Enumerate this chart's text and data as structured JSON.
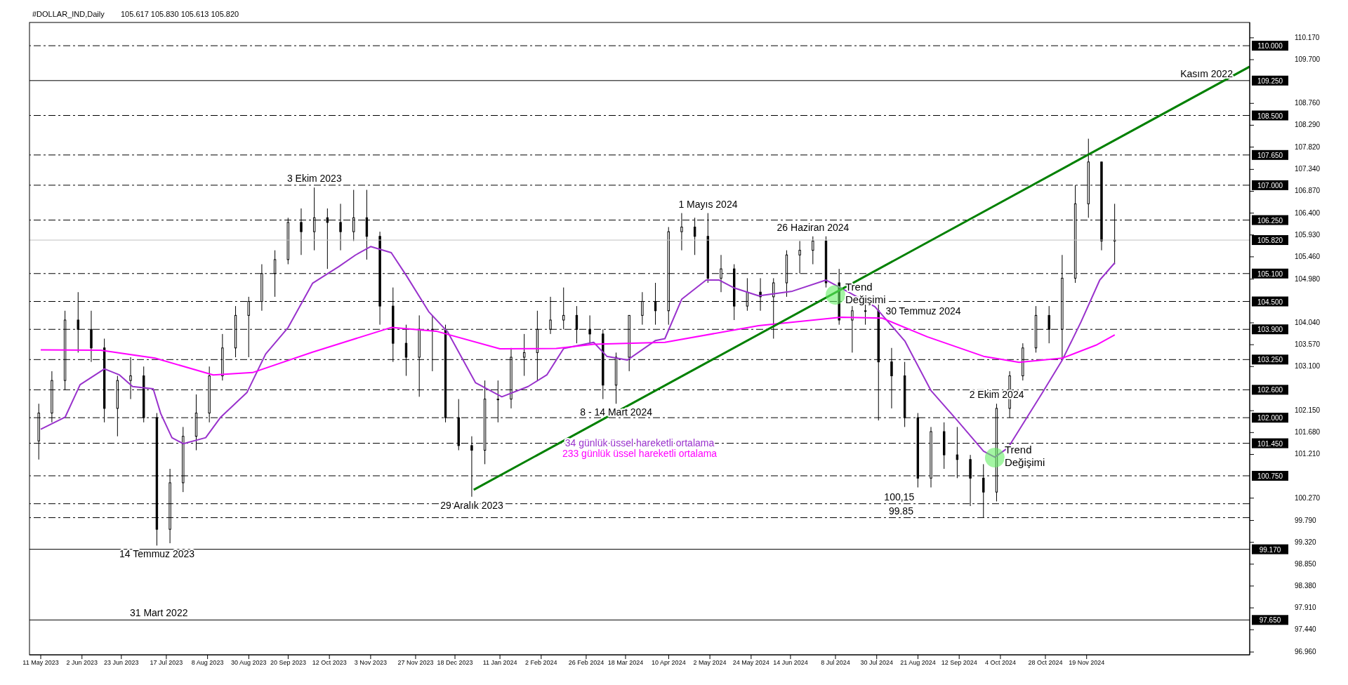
{
  "chart_data": {
    "type": "candlestick",
    "title": "#DOLLAR_IND,Daily",
    "subtitle": "105.617 105.830 105.613 105.820",
    "x": [
      "2023-05-10",
      "2023-05-17",
      "2023-05-24",
      "2023-05-31",
      "2023-06-07",
      "2023-06-14",
      "2023-06-21",
      "2023-06-28",
      "2023-07-05",
      "2023-07-12",
      "2023-07-19",
      "2023-07-26",
      "2023-08-02",
      "2023-08-09",
      "2023-08-16",
      "2023-08-23",
      "2023-08-30",
      "2023-09-06",
      "2023-09-13",
      "2023-09-20",
      "2023-09-27",
      "2023-10-04",
      "2023-10-11",
      "2023-10-18",
      "2023-10-25",
      "2023-11-01",
      "2023-11-08",
      "2023-11-15",
      "2023-11-22",
      "2023-11-29",
      "2023-12-06",
      "2023-12-13",
      "2023-12-20",
      "2023-12-27",
      "2024-01-03",
      "2024-01-10",
      "2024-01-17",
      "2024-01-24",
      "2024-01-31",
      "2024-02-07",
      "2024-02-14",
      "2024-02-21",
      "2024-02-28",
      "2024-03-06",
      "2024-03-13",
      "2024-03-20",
      "2024-03-27",
      "2024-04-03",
      "2024-04-10",
      "2024-04-17",
      "2024-04-24",
      "2024-05-01",
      "2024-05-08",
      "2024-05-15",
      "2024-05-22",
      "2024-05-29",
      "2024-06-05",
      "2024-06-12",
      "2024-06-19",
      "2024-06-26",
      "2024-07-03",
      "2024-07-10",
      "2024-07-17",
      "2024-07-24",
      "2024-07-31",
      "2024-08-07",
      "2024-08-14",
      "2024-08-21",
      "2024-08-28",
      "2024-09-04",
      "2024-09-11",
      "2024-09-18",
      "2024-09-25",
      "2024-10-02",
      "2024-10-09",
      "2024-10-16",
      "2024-10-23",
      "2024-10-30",
      "2024-11-06",
      "2024-11-13",
      "2024-11-20",
      "2024-11-27",
      "2024-12-04"
    ],
    "ohlc": [
      [
        101.5,
        102.3,
        101.1,
        102.1
      ],
      [
        102.1,
        103.0,
        101.9,
        102.8
      ],
      [
        102.8,
        104.3,
        102.6,
        104.1
      ],
      [
        104.1,
        104.7,
        103.4,
        103.9
      ],
      [
        103.9,
        104.3,
        103.2,
        103.5
      ],
      [
        103.5,
        103.7,
        101.9,
        102.2
      ],
      [
        102.2,
        102.9,
        101.6,
        102.8
      ],
      [
        102.8,
        103.3,
        102.4,
        102.9
      ],
      [
        102.9,
        103.1,
        101.9,
        102.0
      ],
      [
        102.0,
        102.1,
        99.25,
        99.6
      ],
      [
        99.6,
        100.9,
        99.3,
        100.6
      ],
      [
        100.6,
        101.8,
        100.4,
        101.6
      ],
      [
        101.6,
        102.5,
        101.3,
        102.1
      ],
      [
        102.1,
        103.1,
        101.9,
        102.9
      ],
      [
        102.9,
        103.8,
        102.8,
        103.5
      ],
      [
        103.5,
        104.4,
        103.3,
        104.2
      ],
      [
        104.2,
        104.6,
        103.3,
        104.5
      ],
      [
        104.5,
        105.3,
        104.3,
        105.1
      ],
      [
        105.1,
        105.6,
        104.6,
        105.4
      ],
      [
        105.4,
        106.3,
        105.3,
        106.2
      ],
      [
        106.2,
        106.5,
        105.5,
        106.0
      ],
      [
        106.0,
        106.95,
        105.6,
        106.3
      ],
      [
        106.3,
        106.5,
        105.2,
        106.2
      ],
      [
        106.2,
        106.6,
        105.6,
        106.0
      ],
      [
        106.0,
        106.9,
        105.8,
        106.3
      ],
      [
        106.3,
        106.9,
        105.4,
        105.9
      ],
      [
        105.9,
        106.0,
        104.0,
        104.4
      ],
      [
        104.4,
        104.8,
        103.2,
        103.6
      ],
      [
        103.6,
        104.0,
        102.9,
        103.3
      ],
      [
        103.3,
        104.2,
        102.45,
        103.9
      ],
      [
        103.9,
        104.2,
        103.0,
        103.9
      ],
      [
        103.9,
        104.0,
        101.9,
        102.0
      ],
      [
        102.0,
        102.4,
        101.3,
        101.4
      ],
      [
        101.4,
        101.6,
        100.3,
        101.3
      ],
      [
        101.3,
        102.8,
        101.0,
        102.4
      ],
      [
        102.4,
        102.8,
        101.9,
        102.4
      ],
      [
        102.4,
        103.5,
        102.2,
        103.3
      ],
      [
        103.3,
        103.8,
        102.9,
        103.4
      ],
      [
        103.4,
        104.3,
        102.8,
        103.9
      ],
      [
        103.9,
        104.6,
        103.8,
        104.1
      ],
      [
        104.1,
        104.8,
        103.9,
        104.2
      ],
      [
        104.2,
        104.4,
        103.6,
        103.9
      ],
      [
        103.9,
        104.2,
        103.6,
        103.8
      ],
      [
        103.8,
        103.9,
        102.4,
        102.7
      ],
      [
        102.7,
        103.4,
        102.3,
        103.3
      ],
      [
        103.3,
        104.2,
        103.0,
        104.2
      ],
      [
        104.2,
        104.7,
        104.0,
        104.5
      ],
      [
        104.5,
        104.9,
        104.0,
        104.3
      ],
      [
        104.3,
        106.1,
        104.0,
        106.0
      ],
      [
        106.0,
        106.4,
        105.6,
        106.1
      ],
      [
        106.1,
        106.3,
        105.5,
        105.9
      ],
      [
        105.9,
        106.4,
        104.9,
        105.0
      ],
      [
        105.0,
        105.5,
        104.7,
        105.2
      ],
      [
        105.2,
        105.3,
        104.1,
        104.4
      ],
      [
        104.4,
        105.0,
        104.3,
        104.7
      ],
      [
        104.7,
        105.0,
        104.3,
        104.6
      ],
      [
        104.6,
        105.0,
        103.7,
        104.9
      ],
      [
        104.9,
        105.6,
        104.6,
        105.5
      ],
      [
        105.5,
        105.8,
        105.1,
        105.6
      ],
      [
        105.6,
        105.9,
        105.3,
        105.8
      ],
      [
        105.8,
        105.9,
        104.8,
        104.9
      ],
      [
        104.9,
        105.2,
        104.0,
        104.1
      ],
      [
        104.1,
        104.4,
        103.4,
        104.3
      ],
      [
        104.3,
        104.6,
        104.0,
        104.3
      ],
      [
        104.3,
        104.5,
        101.94,
        103.2
      ],
      [
        103.2,
        103.5,
        102.2,
        102.9
      ],
      [
        102.9,
        103.2,
        101.8,
        102.0
      ],
      [
        102.0,
        102.1,
        100.5,
        100.7
      ],
      [
        100.7,
        101.8,
        100.5,
        101.7
      ],
      [
        101.7,
        101.9,
        100.9,
        101.2
      ],
      [
        101.2,
        101.8,
        100.7,
        101.1
      ],
      [
        101.1,
        101.2,
        100.1,
        100.7
      ],
      [
        100.7,
        101.0,
        99.85,
        100.4
      ],
      [
        100.4,
        102.3,
        100.2,
        102.2
      ],
      [
        102.2,
        103.0,
        102.0,
        102.9
      ],
      [
        102.9,
        103.6,
        102.8,
        103.5
      ],
      [
        103.5,
        104.4,
        103.4,
        104.2
      ],
      [
        104.2,
        104.4,
        103.6,
        103.9
      ],
      [
        103.9,
        105.5,
        103.25,
        105.0
      ],
      [
        105.0,
        107.0,
        104.9,
        106.6
      ],
      [
        106.6,
        108.0,
        106.3,
        107.5
      ],
      [
        107.5,
        107.5,
        105.6,
        105.8
      ],
      [
        105.8,
        106.6,
        105.3,
        105.82
      ]
    ],
    "series": [
      {
        "type": "line",
        "name": "34 günlük üssel hareketli ortalama",
        "color": "#9932cc",
        "x": [
          "2023-05-11",
          "2023-05-24",
          "2023-06-01",
          "2023-06-14",
          "2023-06-22",
          "2023-06-29",
          "2023-07-10",
          "2023-07-14",
          "2023-07-20",
          "2023-07-26",
          "2023-08-07",
          "2023-08-15",
          "2023-08-29",
          "2023-09-08",
          "2023-09-20",
          "2023-10-03",
          "2023-10-17",
          "2023-10-26",
          "2023-11-03",
          "2023-11-14",
          "2023-11-22",
          "2023-12-04",
          "2023-12-14",
          "2023-12-29",
          "2024-01-12",
          "2024-01-26",
          "2024-02-05",
          "2024-02-14",
          "2024-03-01",
          "2024-03-08",
          "2024-03-19",
          "2024-04-03",
          "2024-04-08",
          "2024-04-17",
          "2024-04-30",
          "2024-05-07",
          "2024-05-15",
          "2024-05-28",
          "2024-06-15",
          "2024-07-03",
          "2024-07-11",
          "2024-07-29",
          "2024-08-14",
          "2024-08-28",
          "2024-09-11",
          "2024-09-25",
          "2024-10-01",
          "2024-10-08",
          "2024-10-26",
          "2024-11-06",
          "2024-11-16",
          "2024-11-26",
          "2024-12-04"
        ],
        "values": [
          101.75,
          102.01,
          102.71,
          103.05,
          102.92,
          102.67,
          102.62,
          102.09,
          101.57,
          101.44,
          101.57,
          102.01,
          102.54,
          103.37,
          103.94,
          104.89,
          105.25,
          105.5,
          105.68,
          105.55,
          105.06,
          104.28,
          103.85,
          102.75,
          102.45,
          102.67,
          102.92,
          103.49,
          103.62,
          103.32,
          103.24,
          103.66,
          103.7,
          104.55,
          104.96,
          104.96,
          104.79,
          104.62,
          104.72,
          104.96,
          104.79,
          104.39,
          103.65,
          102.58,
          101.94,
          101.28,
          101.15,
          101.35,
          102.51,
          103.24,
          104.06,
          104.96,
          105.33
        ]
      },
      {
        "type": "line",
        "name": "233 günlük üssel hareketli ortalama",
        "color": "#ff00ff",
        "x": [
          "2023-05-11",
          "2023-06-12",
          "2023-07-11",
          "2023-08-11",
          "2023-09-01",
          "2023-10-03",
          "2023-11-14",
          "2023-12-08",
          "2024-01-11",
          "2024-02-10",
          "2024-03-01",
          "2024-04-08",
          "2024-05-28",
          "2024-07-11",
          "2024-08-02",
          "2024-08-26",
          "2024-09-25",
          "2024-10-14",
          "2024-11-06",
          "2024-11-24",
          "2024-12-04"
        ],
        "values": [
          103.46,
          103.45,
          103.28,
          102.92,
          102.97,
          103.41,
          103.94,
          103.86,
          103.48,
          103.49,
          103.58,
          103.62,
          103.98,
          104.16,
          104.14,
          103.74,
          103.32,
          103.19,
          103.28,
          103.56,
          103.78
        ]
      },
      {
        "type": "line",
        "color": "#008000",
        "x": [
          "2023-12-28",
          "2025-02-14"
        ],
        "values": [
          100.45,
          109.55
        ]
      }
    ],
    "xlim": [
      "2023-05-05",
      "2025-02-14"
    ],
    "xticks": [
      {
        "value": "2023-05-11",
        "label": "11 May 2023"
      },
      {
        "value": "2023-06-02",
        "label": "2 Jun 2023"
      },
      {
        "value": "2023-06-23",
        "label": "23 Jun 2023"
      },
      {
        "value": "2023-07-17",
        "label": "17 Jul 2023"
      },
      {
        "value": "2023-08-08",
        "label": "8 Aug 2023"
      },
      {
        "value": "2023-08-30",
        "label": "30 Aug 2023"
      },
      {
        "value": "2023-09-20",
        "label": "20 Sep 2023"
      },
      {
        "value": "2023-10-12",
        "label": "12 Oct 2023"
      },
      {
        "value": "2023-11-03",
        "label": "3 Nov 2023"
      },
      {
        "value": "2023-11-27",
        "label": "27 Nov 2023"
      },
      {
        "value": "2023-12-18",
        "label": "18 Dec 2023"
      },
      {
        "value": "2024-01-11",
        "label": "11 Jan 2024"
      },
      {
        "value": "2024-02-02",
        "label": "2 Feb 2024"
      },
      {
        "value": "2024-02-26",
        "label": "26 Feb 2024"
      },
      {
        "value": "2024-03-18",
        "label": "18 Mar 2024"
      },
      {
        "value": "2024-04-10",
        "label": "10 Apr 2024"
      },
      {
        "value": "2024-05-02",
        "label": "2 May 2024"
      },
      {
        "value": "2024-05-24",
        "label": "24 May 2024"
      },
      {
        "value": "2024-06-14",
        "label": "14 Jun 2024"
      },
      {
        "value": "2024-07-08",
        "label": "8 Jul 2024"
      },
      {
        "value": "2024-07-30",
        "label": "30 Jul 2024"
      },
      {
        "value": "2024-08-21",
        "label": "21 Aug 2024"
      },
      {
        "value": "2024-09-12",
        "label": "12 Sep 2024"
      },
      {
        "value": "2024-10-04",
        "label": "4 Oct 2024"
      },
      {
        "value": "2024-10-28",
        "label": "28 Oct 2024"
      },
      {
        "value": "2024-11-19",
        "label": "19 Nov 2024"
      }
    ],
    "ylim": [
      96.9,
      110.5
    ],
    "yticks": [
      {
        "value": 110.17,
        "label": "110.170"
      },
      {
        "value": 109.7,
        "label": "109.700"
      },
      {
        "value": 108.76,
        "label": "108.760"
      },
      {
        "value": 108.29,
        "label": "108.290"
      },
      {
        "value": 107.82,
        "label": "107.820"
      },
      {
        "value": 107.34,
        "label": "107.340"
      },
      {
        "value": 106.87,
        "label": "106.870"
      },
      {
        "value": 106.4,
        "label": "106.400"
      },
      {
        "value": 105.93,
        "label": "105.930"
      },
      {
        "value": 105.46,
        "label": "105.460"
      },
      {
        "value": 104.98,
        "label": "104.980"
      },
      {
        "value": 104.04,
        "label": "104.040"
      },
      {
        "value": 103.57,
        "label": "103.570"
      },
      {
        "value": 103.1,
        "label": "103.100"
      },
      {
        "value": 102.15,
        "label": "102.150"
      },
      {
        "value": 101.68,
        "label": "101.680"
      },
      {
        "value": 101.21,
        "label": "101.210"
      },
      {
        "value": 100.27,
        "label": "100.270"
      },
      {
        "value": 99.79,
        "label": "99.790"
      },
      {
        "value": 99.32,
        "label": "99.320"
      },
      {
        "value": 98.85,
        "label": "98.850"
      },
      {
        "value": 98.38,
        "label": "98.380"
      },
      {
        "value": 97.91,
        "label": "97.910"
      },
      {
        "value": 97.44,
        "label": "97.440"
      },
      {
        "value": 96.96,
        "label": "96.960"
      }
    ],
    "ref_lines": [
      {
        "axis": "y",
        "value": 110.0,
        "label": "110.000",
        "line_style": "dashed",
        "color": "#000000"
      },
      {
        "axis": "y",
        "value": 109.25,
        "label": "109.250",
        "line_style": "solid",
        "color": "#000000"
      },
      {
        "axis": "y",
        "value": 108.5,
        "label": "108.500",
        "line_style": "dashed",
        "color": "#000000"
      },
      {
        "axis": "y",
        "value": 107.65,
        "label": "107.650",
        "line_style": "dashed",
        "color": "#000000"
      },
      {
        "axis": "y",
        "value": 107.0,
        "label": "107.000",
        "line_style": "dashed",
        "color": "#000000"
      },
      {
        "axis": "y",
        "value": 106.25,
        "label": "106.250",
        "line_style": "dashed",
        "color": "#000000"
      },
      {
        "axis": "y",
        "value": 105.82,
        "label": "105.820",
        "line_style": "solid",
        "color": "#c0c0c0"
      },
      {
        "axis": "y",
        "value": 105.1,
        "label": "105.100",
        "line_style": "dashed",
        "color": "#000000"
      },
      {
        "axis": "y",
        "value": 104.5,
        "label": "104.500",
        "line_style": "dashed",
        "color": "#000000"
      },
      {
        "axis": "y",
        "value": 103.9,
        "label": "103.900",
        "line_style": "dashed",
        "color": "#000000"
      },
      {
        "axis": "y",
        "value": 103.25,
        "label": "103.250",
        "line_style": "dashed",
        "color": "#000000"
      },
      {
        "axis": "y",
        "value": 102.6,
        "label": "102.600",
        "line_style": "dashed",
        "color": "#000000"
      },
      {
        "axis": "y",
        "value": 102.0,
        "label": "102.000",
        "line_style": "dashed",
        "color": "#000000"
      },
      {
        "axis": "y",
        "value": 101.45,
        "label": "101.450",
        "line_style": "dashed",
        "color": "#000000"
      },
      {
        "axis": "y",
        "value": 100.75,
        "label": "100.750",
        "line_style": "dashed",
        "color": "#000000"
      },
      {
        "axis": "y",
        "value": 100.15,
        "line_style": "dashed",
        "color": "#000000"
      },
      {
        "axis": "y",
        "value": 99.85,
        "line_style": "dashed",
        "color": "#000000"
      },
      {
        "axis": "y",
        "value": 99.17,
        "label": "99.170",
        "line_style": "solid",
        "color": "#000000"
      },
      {
        "axis": "y",
        "value": 97.65,
        "label": "97.650",
        "line_style": "solid",
        "color": "#000000"
      }
    ],
    "annotations": [
      {
        "text": "3 Ekim 2023",
        "x": "2023-10-04",
        "y": 106.95
      },
      {
        "text": "14 Temmuz 2023",
        "x": "2023-07-12",
        "y": 99.25
      },
      {
        "text": "31 Mart 2022",
        "x": "2023-07-13",
        "y": 97.65
      },
      {
        "text": "29 Aralık 2023",
        "x": "2023-12-27",
        "y": 100.3
      },
      {
        "text": "8 - 14 Mart 2024",
        "x": "2024-03-13",
        "y": 102.3
      },
      {
        "text": "1 Mayıs 2024",
        "x": "2024-05-01",
        "y": 106.4
      },
      {
        "text": "26 Haziran 2024",
        "x": "2024-06-26",
        "y": 105.9
      },
      {
        "text": "Trend\nDeğişimi",
        "x": "2024-07-08",
        "y": 104.64
      },
      {
        "text": "30 Temmuz 2024",
        "x": "2024-07-31",
        "y": 104.3
      },
      {
        "text": "2 Ekim 2024",
        "x": "2024-10-02",
        "y": 102.3
      },
      {
        "text": "Trend\nDeğişimi",
        "x": "2024-10-01",
        "y": 101.14
      },
      {
        "text": "100,15",
        "x": "2024-08-11",
        "y": 100.15
      },
      {
        "text": "99.85",
        "x": "2024-08-12",
        "y": 99.85
      },
      {
        "text": "Kasım 2022",
        "x": "2025-01-22",
        "y": 109.25
      }
    ],
    "legend": "center"
  }
}
